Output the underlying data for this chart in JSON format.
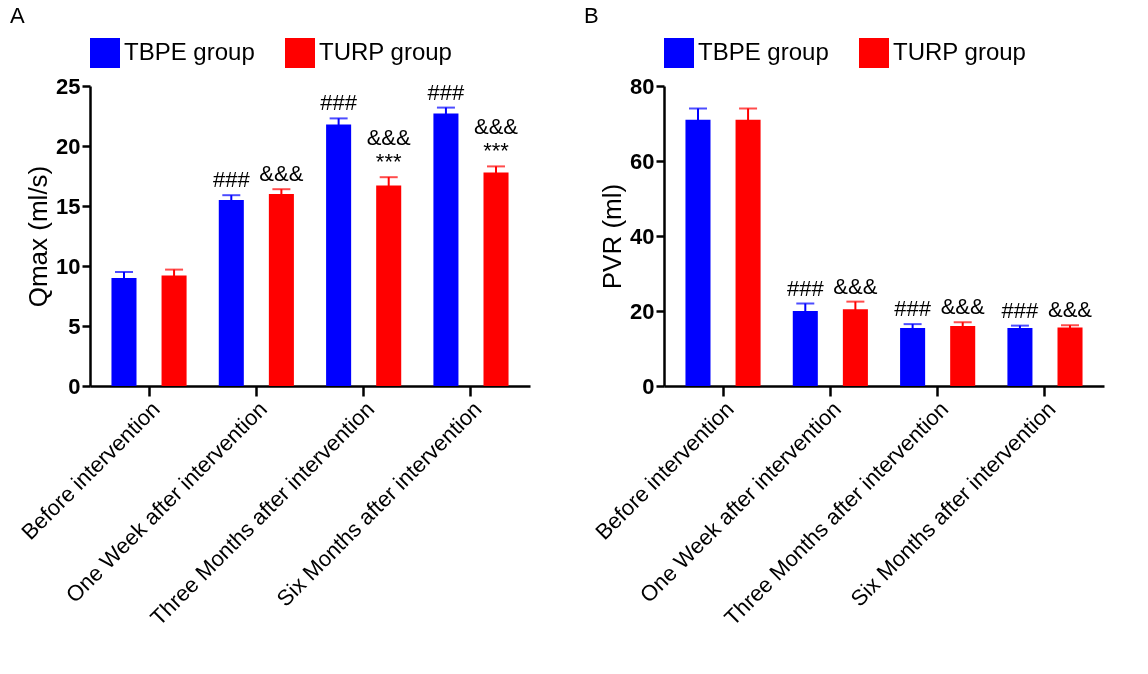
{
  "chart_data": [
    {
      "type": "bar",
      "title": "A",
      "ylabel": "Qmax (ml/s)",
      "categories": [
        "Before intervention",
        "One Week after intervention",
        "Three Months after intervention",
        "Six Months after intervention"
      ],
      "series": [
        {
          "name": "TBPE group",
          "color": "#0000ff",
          "values": [
            9.0,
            15.5,
            21.8,
            22.7
          ],
          "errors": [
            0.5,
            0.4,
            0.5,
            0.5
          ]
        },
        {
          "name": "TURP group",
          "color": "#ff0000",
          "values": [
            9.2,
            16.0,
            16.7,
            17.8
          ],
          "errors": [
            0.5,
            0.4,
            0.7,
            0.5
          ]
        }
      ],
      "ylim": [
        0,
        25
      ],
      "yticks": [
        0,
        5,
        10,
        15,
        20,
        25
      ],
      "grid": false,
      "legend": "top",
      "annotations": [
        "###",
        "&&&",
        "###",
        "&&&",
        "***",
        "###",
        "&&&",
        "***"
      ]
    },
    {
      "type": "bar",
      "title": "B",
      "ylabel": "PVR (ml)",
      "categories": [
        "Before intervention",
        "One Week after intervention",
        "Three Months after intervention",
        "Six Months after intervention"
      ],
      "series": [
        {
          "name": "TBPE group",
          "color": "#0000ff",
          "values": [
            71.0,
            20.0,
            15.5,
            15.5
          ],
          "errors": [
            3.0,
            2.0,
            1.0,
            0.6
          ]
        },
        {
          "name": "TURP group",
          "color": "#ff0000",
          "values": [
            71.0,
            20.5,
            16.0,
            15.6
          ],
          "errors": [
            3.0,
            2.0,
            1.0,
            0.6
          ]
        }
      ],
      "ylim": [
        0,
        80
      ],
      "yticks": [
        0,
        20,
        40,
        60,
        80
      ],
      "grid": false,
      "legend": "top",
      "annotations": [
        "###",
        "&&&",
        "###",
        "&&&",
        "###",
        "&&&"
      ]
    }
  ]
}
